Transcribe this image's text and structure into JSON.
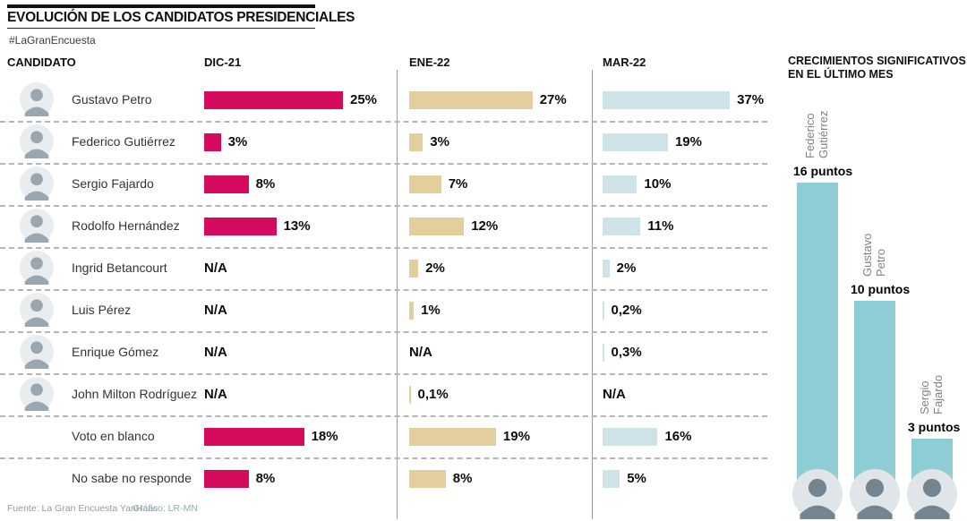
{
  "header": {
    "title": "EVOLUCIÓN DE LOS CANDIDATOS PRESIDENCIALES",
    "hashtag": "#LaGranEncuesta"
  },
  "columns": {
    "candidate": "CANDIDATO",
    "periods": [
      "DIC-21",
      "ENE-22",
      "MAR-22"
    ]
  },
  "colors": {
    "dic": "#d50b5e",
    "ene": "#e3cf9d",
    "mar": "#cde3e7",
    "growth": "#8ecdd4"
  },
  "rows": [
    {
      "name": "Gustavo Petro",
      "has_avatar": true,
      "periods": {
        "dic": {
          "value": 25,
          "label": "25%"
        },
        "ene": {
          "value": 27,
          "label": "27%"
        },
        "mar": {
          "value": 37,
          "label": "37%"
        }
      }
    },
    {
      "name": "Federico Gutiérrez",
      "has_avatar": true,
      "periods": {
        "dic": {
          "value": 3,
          "label": "3%"
        },
        "ene": {
          "value": 3,
          "label": "3%"
        },
        "mar": {
          "value": 19,
          "label": "19%"
        }
      }
    },
    {
      "name": "Sergio Fajardo",
      "has_avatar": true,
      "periods": {
        "dic": {
          "value": 8,
          "label": "8%"
        },
        "ene": {
          "value": 7,
          "label": "7%"
        },
        "mar": {
          "value": 10,
          "label": "10%"
        }
      }
    },
    {
      "name": "Rodolfo Hernández",
      "has_avatar": true,
      "periods": {
        "dic": {
          "value": 13,
          "label": "13%"
        },
        "ene": {
          "value": 12,
          "label": "12%"
        },
        "mar": {
          "value": 11,
          "label": "11%"
        }
      }
    },
    {
      "name": "Ingrid Betancourt",
      "has_avatar": true,
      "periods": {
        "dic": {
          "value": null,
          "label": "N/A"
        },
        "ene": {
          "value": 2,
          "label": "2%"
        },
        "mar": {
          "value": 2,
          "label": "2%"
        }
      }
    },
    {
      "name": "Luis Pérez",
      "has_avatar": true,
      "periods": {
        "dic": {
          "value": null,
          "label": "N/A"
        },
        "ene": {
          "value": 1,
          "label": "1%"
        },
        "mar": {
          "value": 0.2,
          "label": "0,2%"
        }
      }
    },
    {
      "name": "Enrique Gómez",
      "has_avatar": true,
      "periods": {
        "dic": {
          "value": null,
          "label": "N/A"
        },
        "ene": {
          "value": null,
          "label": "N/A"
        },
        "mar": {
          "value": 0.3,
          "label": "0,3%"
        }
      }
    },
    {
      "name": "John Milton Rodríguez",
      "has_avatar": true,
      "periods": {
        "dic": {
          "value": null,
          "label": "N/A"
        },
        "ene": {
          "value": 0.1,
          "label": "0,1%"
        },
        "mar": {
          "value": null,
          "label": "N/A"
        }
      }
    },
    {
      "name": "Voto en blanco",
      "has_avatar": false,
      "periods": {
        "dic": {
          "value": 18,
          "label": "18%"
        },
        "ene": {
          "value": 19,
          "label": "19%"
        },
        "mar": {
          "value": 16,
          "label": "16%"
        }
      }
    },
    {
      "name": "No sabe no responde",
      "has_avatar": false,
      "periods": {
        "dic": {
          "value": 8,
          "label": "8%"
        },
        "ene": {
          "value": 8,
          "label": "8%"
        },
        "mar": {
          "value": 5,
          "label": "5%"
        }
      }
    }
  ],
  "growth_panel": {
    "title_line1": "CRECIMIENTOS SIGNIFICATIVOS",
    "title_line2": "EN EL ÚLTIMO MES",
    "bars": [
      {
        "name_line1": "Federico",
        "name_line2": "Gutiérrez",
        "label": "16 puntos",
        "value": 16
      },
      {
        "name_line1": "Gustavo",
        "name_line2": "Petro",
        "label": "10 puntos",
        "value": 10
      },
      {
        "name_line1": "Sergio",
        "name_line2": "Fajardo",
        "label": "3 puntos",
        "value": 3
      }
    ]
  },
  "footer": {
    "source": "Fuente: La Gran Encuesta YanHaas",
    "credit": "Gráfico: LR-MN"
  },
  "chart_data": [
    {
      "type": "bar",
      "title": "EVOLUCIÓN DE LOS CANDIDATOS PRESIDENCIALES",
      "subtitle": "#LaGranEncuesta",
      "orientation": "horizontal",
      "categories": [
        "Gustavo Petro",
        "Federico Gutiérrez",
        "Sergio Fajardo",
        "Rodolfo Hernández",
        "Ingrid Betancourt",
        "Luis Pérez",
        "Enrique Gómez",
        "John Milton Rodríguez",
        "Voto en blanco",
        "No sabe no responde"
      ],
      "series": [
        {
          "name": "DIC-21",
          "values": [
            25,
            3,
            8,
            13,
            null,
            null,
            null,
            null,
            18,
            8
          ]
        },
        {
          "name": "ENE-22",
          "values": [
            27,
            3,
            7,
            12,
            2,
            1,
            null,
            0.1,
            19,
            8
          ]
        },
        {
          "name": "MAR-22",
          "values": [
            37,
            19,
            10,
            11,
            2,
            0.2,
            0.3,
            null,
            16,
            5
          ]
        }
      ],
      "unit": "%",
      "null_label": "N/A",
      "grid": false,
      "legend_position": "column-headers"
    },
    {
      "type": "bar",
      "title": "CRECIMIENTOS SIGNIFICATIVOS EN EL ÚLTIMO MES",
      "orientation": "vertical",
      "categories": [
        "Federico Gutiérrez",
        "Gustavo Petro",
        "Sergio Fajardo"
      ],
      "values": [
        16,
        10,
        3
      ],
      "unit": "puntos",
      "grid": false
    }
  ]
}
